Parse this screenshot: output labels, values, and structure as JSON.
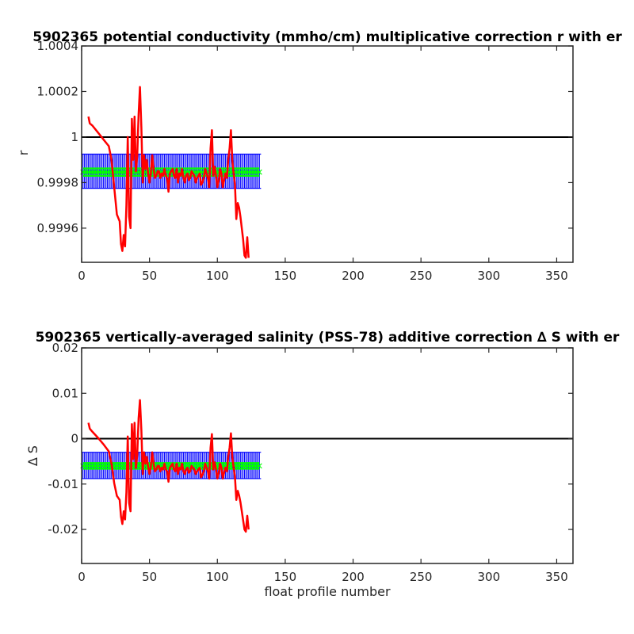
{
  "chart_data": [
    {
      "type": "line",
      "title": "5902365 potential conductivity (mmho/cm) multiplicative correction r with er",
      "xlabel": "",
      "ylabel": "r",
      "xlim": [
        0,
        362
      ],
      "ylim": [
        0.99945,
        1.0004
      ],
      "xticks": [
        "0",
        "50",
        "100",
        "150",
        "200",
        "250",
        "300",
        "350"
      ],
      "xtick_values": [
        0,
        50,
        100,
        150,
        200,
        250,
        300,
        350
      ],
      "yticks": [
        "0.9996",
        "0.9998",
        "1",
        "1.0002",
        "1.0004"
      ],
      "ytick_values": [
        0.9996,
        0.9998,
        1.0,
        1.0002,
        1.0004
      ],
      "grid": false,
      "reference_line": {
        "y": 1.0,
        "color": "#000000"
      },
      "error_band": {
        "x_start": 1,
        "x_end": 131,
        "center": 0.999846,
        "lower": 0.999775,
        "upper": 0.999925,
        "bar_color": "#0000ff",
        "center_color": "#00ff00"
      },
      "series": [
        {
          "color": "#ff0000",
          "x": [
            5,
            6,
            8,
            12,
            16,
            20,
            22,
            24,
            26,
            28,
            29,
            30,
            31,
            32,
            33,
            34,
            35,
            36,
            37,
            38,
            39,
            40,
            41,
            42,
            43,
            44,
            45,
            46,
            47,
            48,
            49,
            50,
            51,
            52,
            53,
            54,
            55,
            56,
            57,
            58,
            59,
            60,
            61,
            62,
            63,
            64,
            65,
            66,
            67,
            68,
            69,
            70,
            71,
            72,
            73,
            74,
            75,
            76,
            77,
            78,
            79,
            80,
            81,
            82,
            83,
            84,
            85,
            86,
            87,
            88,
            89,
            90,
            91,
            92,
            93,
            94,
            95,
            96,
            97,
            98,
            99,
            100,
            101,
            102,
            103,
            104,
            105,
            106,
            107,
            108,
            109,
            110,
            111,
            112,
            113,
            114,
            115,
            116,
            117,
            118,
            119,
            120,
            121,
            122,
            123
          ],
          "y": [
            1.00009,
            1.00006,
            1.00005,
            1.00002,
            0.99999,
            0.99996,
            0.9999,
            0.99978,
            0.99966,
            0.99963,
            0.99953,
            0.9995,
            0.99957,
            0.99952,
            0.9997,
            1.0,
            0.99965,
            0.9996,
            1.00008,
            0.9999,
            1.00009,
            0.99985,
            0.99992,
            1.0001,
            1.00022,
            1.00004,
            0.9998,
            0.99992,
            0.99986,
            0.9999,
            0.99984,
            0.9998,
            0.99984,
            0.99992,
            0.99986,
            0.99982,
            0.99983,
            0.99985,
            0.99985,
            0.99982,
            0.99984,
            0.99983,
            0.99986,
            0.99983,
            0.99982,
            0.99976,
            0.99984,
            0.99985,
            0.99986,
            0.99983,
            0.99982,
            0.99986,
            0.9998,
            0.99984,
            0.99983,
            0.99986,
            0.99982,
            0.9998,
            0.99983,
            0.99984,
            0.99981,
            0.99982,
            0.99985,
            0.99984,
            0.99983,
            0.9998,
            0.99982,
            0.99983,
            0.99984,
            0.99979,
            0.9998,
            0.99982,
            0.99986,
            0.99984,
            0.99982,
            0.99978,
            0.99995,
            1.00003,
            0.99983,
            0.99987,
            0.99983,
            0.99978,
            0.99981,
            0.99986,
            0.99984,
            0.99978,
            0.99981,
            0.99984,
            0.99982,
            0.9999,
            0.99995,
            1.00003,
            0.9999,
            0.99984,
            0.99979,
            0.99964,
            0.99971,
            0.99969,
            0.99965,
            0.9996,
            0.99955,
            0.99948,
            0.99947,
            0.99956,
            0.99947
          ]
        }
      ]
    },
    {
      "type": "line",
      "title": "5902365 vertically-averaged salinity (PSS-78) additive correction ∆ S with er",
      "xlabel": "float profile number",
      "ylabel": "∆ S",
      "xlim": [
        0,
        362
      ],
      "ylim": [
        -0.0275,
        0.02
      ],
      "xticks": [
        "0",
        "50",
        "100",
        "150",
        "200",
        "250",
        "300",
        "350"
      ],
      "xtick_values": [
        0,
        50,
        100,
        150,
        200,
        250,
        300,
        350
      ],
      "yticks": [
        "-0.02",
        "-0.01",
        "0",
        "0.01",
        "0.02"
      ],
      "ytick_values": [
        -0.02,
        -0.01,
        0.0,
        0.01,
        0.02
      ],
      "grid": false,
      "reference_line": {
        "y": 0.0,
        "color": "#000000"
      },
      "error_band": {
        "x_start": 1,
        "x_end": 131,
        "center": -0.006,
        "lower": -0.0088,
        "upper": -0.003,
        "bar_color": "#0000ff",
        "center_color": "#00ff00"
      },
      "series": [
        {
          "color": "#ff0000",
          "x": [
            5,
            6,
            8,
            12,
            16,
            20,
            22,
            24,
            26,
            28,
            29,
            30,
            31,
            32,
            33,
            34,
            35,
            36,
            37,
            38,
            39,
            40,
            41,
            42,
            43,
            44,
            45,
            46,
            47,
            48,
            49,
            50,
            51,
            52,
            53,
            54,
            55,
            56,
            57,
            58,
            59,
            60,
            61,
            62,
            63,
            64,
            65,
            66,
            67,
            68,
            69,
            70,
            71,
            72,
            73,
            74,
            75,
            76,
            77,
            78,
            79,
            80,
            81,
            82,
            83,
            84,
            85,
            86,
            87,
            88,
            89,
            90,
            91,
            92,
            93,
            94,
            95,
            96,
            97,
            98,
            99,
            100,
            101,
            102,
            103,
            104,
            105,
            106,
            107,
            108,
            109,
            110,
            111,
            112,
            113,
            114,
            115,
            116,
            117,
            118,
            119,
            120,
            121,
            122,
            123
          ],
          "y": [
            0.0035,
            0.0022,
            0.0015,
            0.0002,
            -0.0012,
            -0.0028,
            -0.0055,
            -0.0098,
            -0.0126,
            -0.0135,
            -0.0172,
            -0.0188,
            -0.016,
            -0.0178,
            -0.0118,
            0.0005,
            -0.0142,
            -0.016,
            0.0032,
            -0.0045,
            0.0035,
            -0.0065,
            -0.0035,
            0.0045,
            0.0085,
            0.0018,
            -0.0078,
            -0.003,
            -0.0055,
            -0.004,
            -0.0062,
            -0.0078,
            -0.0062,
            -0.003,
            -0.0055,
            -0.0072,
            -0.0068,
            -0.006,
            -0.006,
            -0.0072,
            -0.0064,
            -0.0068,
            -0.0055,
            -0.0068,
            -0.0072,
            -0.0095,
            -0.0064,
            -0.006,
            -0.0055,
            -0.0068,
            -0.0072,
            -0.0055,
            -0.0078,
            -0.0064,
            -0.0068,
            -0.0055,
            -0.0072,
            -0.0078,
            -0.0068,
            -0.0064,
            -0.0075,
            -0.0072,
            -0.006,
            -0.0064,
            -0.0068,
            -0.0078,
            -0.0072,
            -0.0068,
            -0.0064,
            -0.0085,
            -0.008,
            -0.0072,
            -0.0055,
            -0.0064,
            -0.0072,
            -0.0088,
            -0.002,
            0.001,
            -0.0068,
            -0.0052,
            -0.0068,
            -0.0088,
            -0.0075,
            -0.0055,
            -0.0064,
            -0.0088,
            -0.0075,
            -0.0064,
            -0.0072,
            -0.004,
            -0.002,
            0.0012,
            -0.004,
            -0.0064,
            -0.0085,
            -0.0135,
            -0.0115,
            -0.0125,
            -0.014,
            -0.016,
            -0.018,
            -0.02,
            -0.0205,
            -0.017,
            -0.02
          ]
        }
      ]
    }
  ]
}
